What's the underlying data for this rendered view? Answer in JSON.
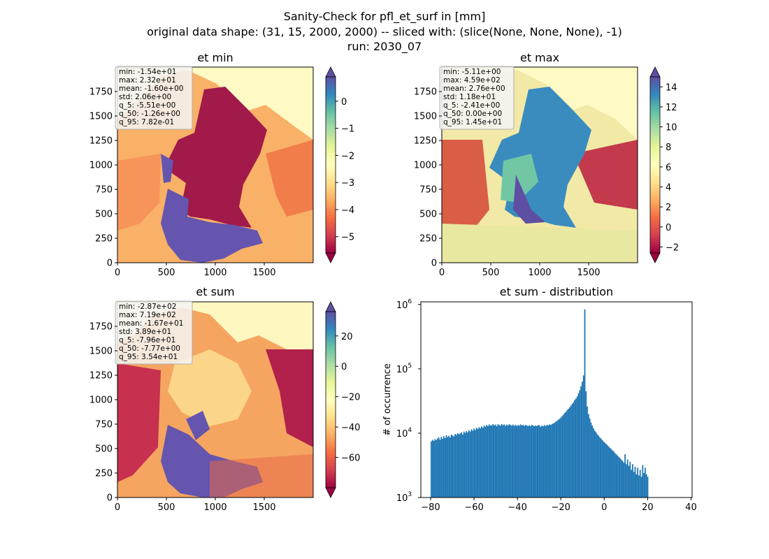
{
  "figure": {
    "title_lines": [
      "Sanity-Check for pfl_et_surf in [mm]",
      "original data shape: (31, 15, 2000, 2000) -- sliced with: (slice(None, None, None), -1)",
      "run: 2030_07"
    ]
  },
  "colors": {
    "spectral_ramp": [
      "#9e0142",
      "#d53e4f",
      "#f46d43",
      "#fdae61",
      "#fee08b",
      "#ffffbf",
      "#e6f598",
      "#abdda4",
      "#66c2a5",
      "#3288bd",
      "#5e4fa2"
    ],
    "hist_bar": "#1f77b4",
    "stats_box_bg": "#f5f5f5",
    "stats_box_border": "#b0b0b0"
  },
  "chart_data": [
    {
      "type": "heatmap",
      "title": "et min",
      "x_ticks": [
        "0",
        "500",
        "1000",
        "1500"
      ],
      "y_ticks": [
        "0",
        "250",
        "500",
        "750",
        "1000",
        "1250",
        "1500",
        "1750"
      ],
      "xlim": [
        0,
        2000
      ],
      "ylim": [
        0,
        2000
      ],
      "colorbar": {
        "ticks": [
          "0",
          "−1",
          "−2",
          "−3",
          "−4",
          "−5"
        ],
        "tick_values": [
          0,
          -1,
          -2,
          -3,
          -4,
          -5
        ],
        "vmin": -5.6,
        "vmax": 0.9,
        "extend": "both"
      },
      "stats": [
        "min: -1.54e+01",
        "max: 2.32e+01",
        "mean: -1.60e+00",
        "std: 2.06e+00",
        "q_5: -5.51e+00",
        "q_50: -1.26e+00",
        "q_95: 7.82e-01"
      ]
    },
    {
      "type": "heatmap",
      "title": "et max",
      "x_ticks": [
        "0",
        "500",
        "1000",
        "1500"
      ],
      "y_ticks": [
        "0",
        "250",
        "500",
        "750",
        "1000",
        "1250",
        "1500",
        "1750"
      ],
      "xlim": [
        0,
        2000
      ],
      "ylim": [
        0,
        2000
      ],
      "colorbar": {
        "ticks": [
          "14",
          "12",
          "10",
          "8",
          "6",
          "4",
          "2",
          "0",
          "−2"
        ],
        "tick_values": [
          14,
          12,
          10,
          8,
          6,
          4,
          2,
          0,
          -2
        ],
        "vmin": -2.6,
        "vmax": 15,
        "extend": "both"
      },
      "stats": [
        "min: -5.11e+00",
        "max: 4.59e+02",
        "mean: 2.76e+00",
        "std: 1.18e+01",
        "q_5: -2.41e+00",
        "q_50: 0.00e+00",
        "q_95: 1.45e+01"
      ]
    },
    {
      "type": "heatmap",
      "title": "et sum",
      "x_ticks": [
        "0",
        "500",
        "1000",
        "1500"
      ],
      "y_ticks": [
        "0",
        "250",
        "500",
        "750",
        "1000",
        "1250",
        "1500",
        "1750"
      ],
      "xlim": [
        0,
        2000
      ],
      "ylim": [
        0,
        2000
      ],
      "colorbar": {
        "ticks": [
          "20",
          "0",
          "−20",
          "−40",
          "−60"
        ],
        "tick_values": [
          20,
          0,
          -20,
          -40,
          -60
        ],
        "vmin": -80,
        "vmax": 36,
        "extend": "both"
      },
      "stats": [
        "min: -2.87e+02",
        "max: 7.19e+02",
        "mean: -1.67e+01",
        "std: 3.89e+01",
        "q_5: -7.96e+01",
        "q_50: -7.77e+00",
        "q_95: 3.54e+01"
      ]
    },
    {
      "type": "bar",
      "title": "et sum - distribution",
      "ylabel": "# of occurrence",
      "xlabel": "",
      "xlim": [
        -84.5,
        40.5
      ],
      "ylim": [
        1000,
        1100000
      ],
      "y_scale": "log",
      "x_ticks": [
        "−80",
        "−60",
        "−40",
        "−20",
        "0",
        "20",
        "40"
      ],
      "x_tick_values": [
        -80,
        -60,
        -40,
        -20,
        0,
        20,
        40
      ],
      "y_ticks": [
        {
          "base": "10",
          "exp": "3",
          "value": 1000
        },
        {
          "base": "10",
          "exp": "4",
          "value": 10000
        },
        {
          "base": "10",
          "exp": "5",
          "value": 100000
        },
        {
          "base": "10",
          "exp": "6",
          "value": 1000000
        }
      ],
      "bin_start": -80,
      "bin_width": 0.58,
      "counts": [
        7400,
        7900,
        7600,
        8100,
        7800,
        8300,
        8600,
        7900,
        8800,
        8200,
        9000,
        8400,
        9300,
        8700,
        9100,
        8600,
        9500,
        9200,
        8900,
        9700,
        9400,
        10000,
        9600,
        9900,
        10300,
        9500,
        10600,
        10100,
        10800,
        10300,
        11100,
        10600,
        11500,
        10900,
        11800,
        11200,
        12100,
        11600,
        12400,
        11900,
        12700,
        12200,
        13100,
        12600,
        13400,
        12900,
        13700,
        13200,
        13100,
        13800,
        13300,
        13600,
        12900,
        13800,
        13400,
        13100,
        13900,
        13300,
        13700,
        13000,
        13600,
        13200,
        13800,
        13400,
        13100,
        13600,
        13000,
        13500,
        12900,
        13400,
        13100,
        13700,
        13200,
        13500,
        13000,
        13400,
        13200,
        12900,
        13300,
        12800,
        13500,
        13100,
        12800,
        13200,
        12900,
        13400,
        13200,
        12600,
        13100,
        12800,
        13300,
        12900,
        13500,
        13200,
        13700,
        13400,
        13900,
        14200,
        14600,
        15100,
        15600,
        16200,
        16800,
        17500,
        18400,
        19400,
        20600,
        21500,
        22800,
        23900,
        25200,
        26800,
        28600,
        30300,
        32800,
        34700,
        37300,
        41500,
        46500,
        53500,
        63000,
        79000,
        840000,
        45000,
        26000,
        19800,
        16900,
        14600,
        13100,
        11900,
        10900,
        10300,
        9600,
        9100,
        8600,
        8200,
        7800,
        7400,
        7100,
        6800,
        6500,
        6200,
        5900,
        5700,
        5400,
        5200,
        4900,
        4700,
        4500,
        4300,
        4100,
        3900,
        3700,
        3500,
        4700,
        3300,
        3900,
        3100,
        3600,
        2700,
        3300,
        2500,
        3000,
        2300,
        2900,
        2200,
        2700,
        2100,
        3200,
        2400,
        2900,
        2300,
        2100
      ]
    }
  ]
}
